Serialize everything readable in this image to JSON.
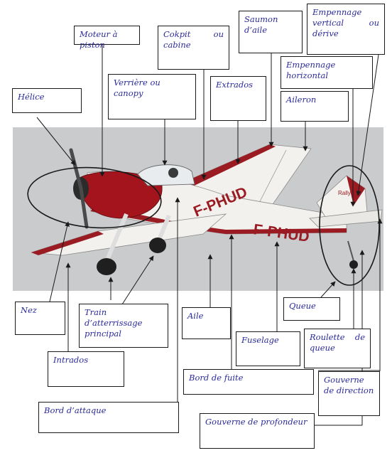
{
  "labels": {
    "moteur": "Moteur à piston",
    "cokpit_1": "Cokpit ou",
    "cokpit_2": "cabine",
    "saumon_1": "Saumon",
    "saumon_2": "d’aile",
    "emp_vert_1": "Empennage",
    "emp_vert_2": "vertical ou",
    "emp_vert_3": "dérive",
    "emp_horiz_1": "Empennage",
    "emp_horiz_2": "horizontal",
    "helice": "Hélice",
    "verriere": "Verrière ou canopy",
    "extrados": "Extrados",
    "aileron": "Aileron",
    "nez": "Nez",
    "train_1": "Train d’atterrissage",
    "train_2": "principal",
    "aile": "Aile",
    "queue": "Queue",
    "fuselage": "Fuselage",
    "roulette_1": "Roulette de",
    "roulette_2": "queue",
    "intrados": "Intrados",
    "bord_fuite": "Bord de fuite",
    "gouverne_dir_1": "Gouverne",
    "gouverne_dir_2": "de direction",
    "bord_attaque": "Bord d’attaque",
    "gouverne_prof": "Gouverne de profondeur"
  },
  "photo": {
    "registration": "F-PHUD",
    "fin_text": "Rallye",
    "colors": {
      "sky": "#c9cbcd",
      "hull": "#f2f1ee",
      "accent": "#9a1c22",
      "ink": "#1a1a1a",
      "label_text": "#2a2a9a"
    }
  }
}
